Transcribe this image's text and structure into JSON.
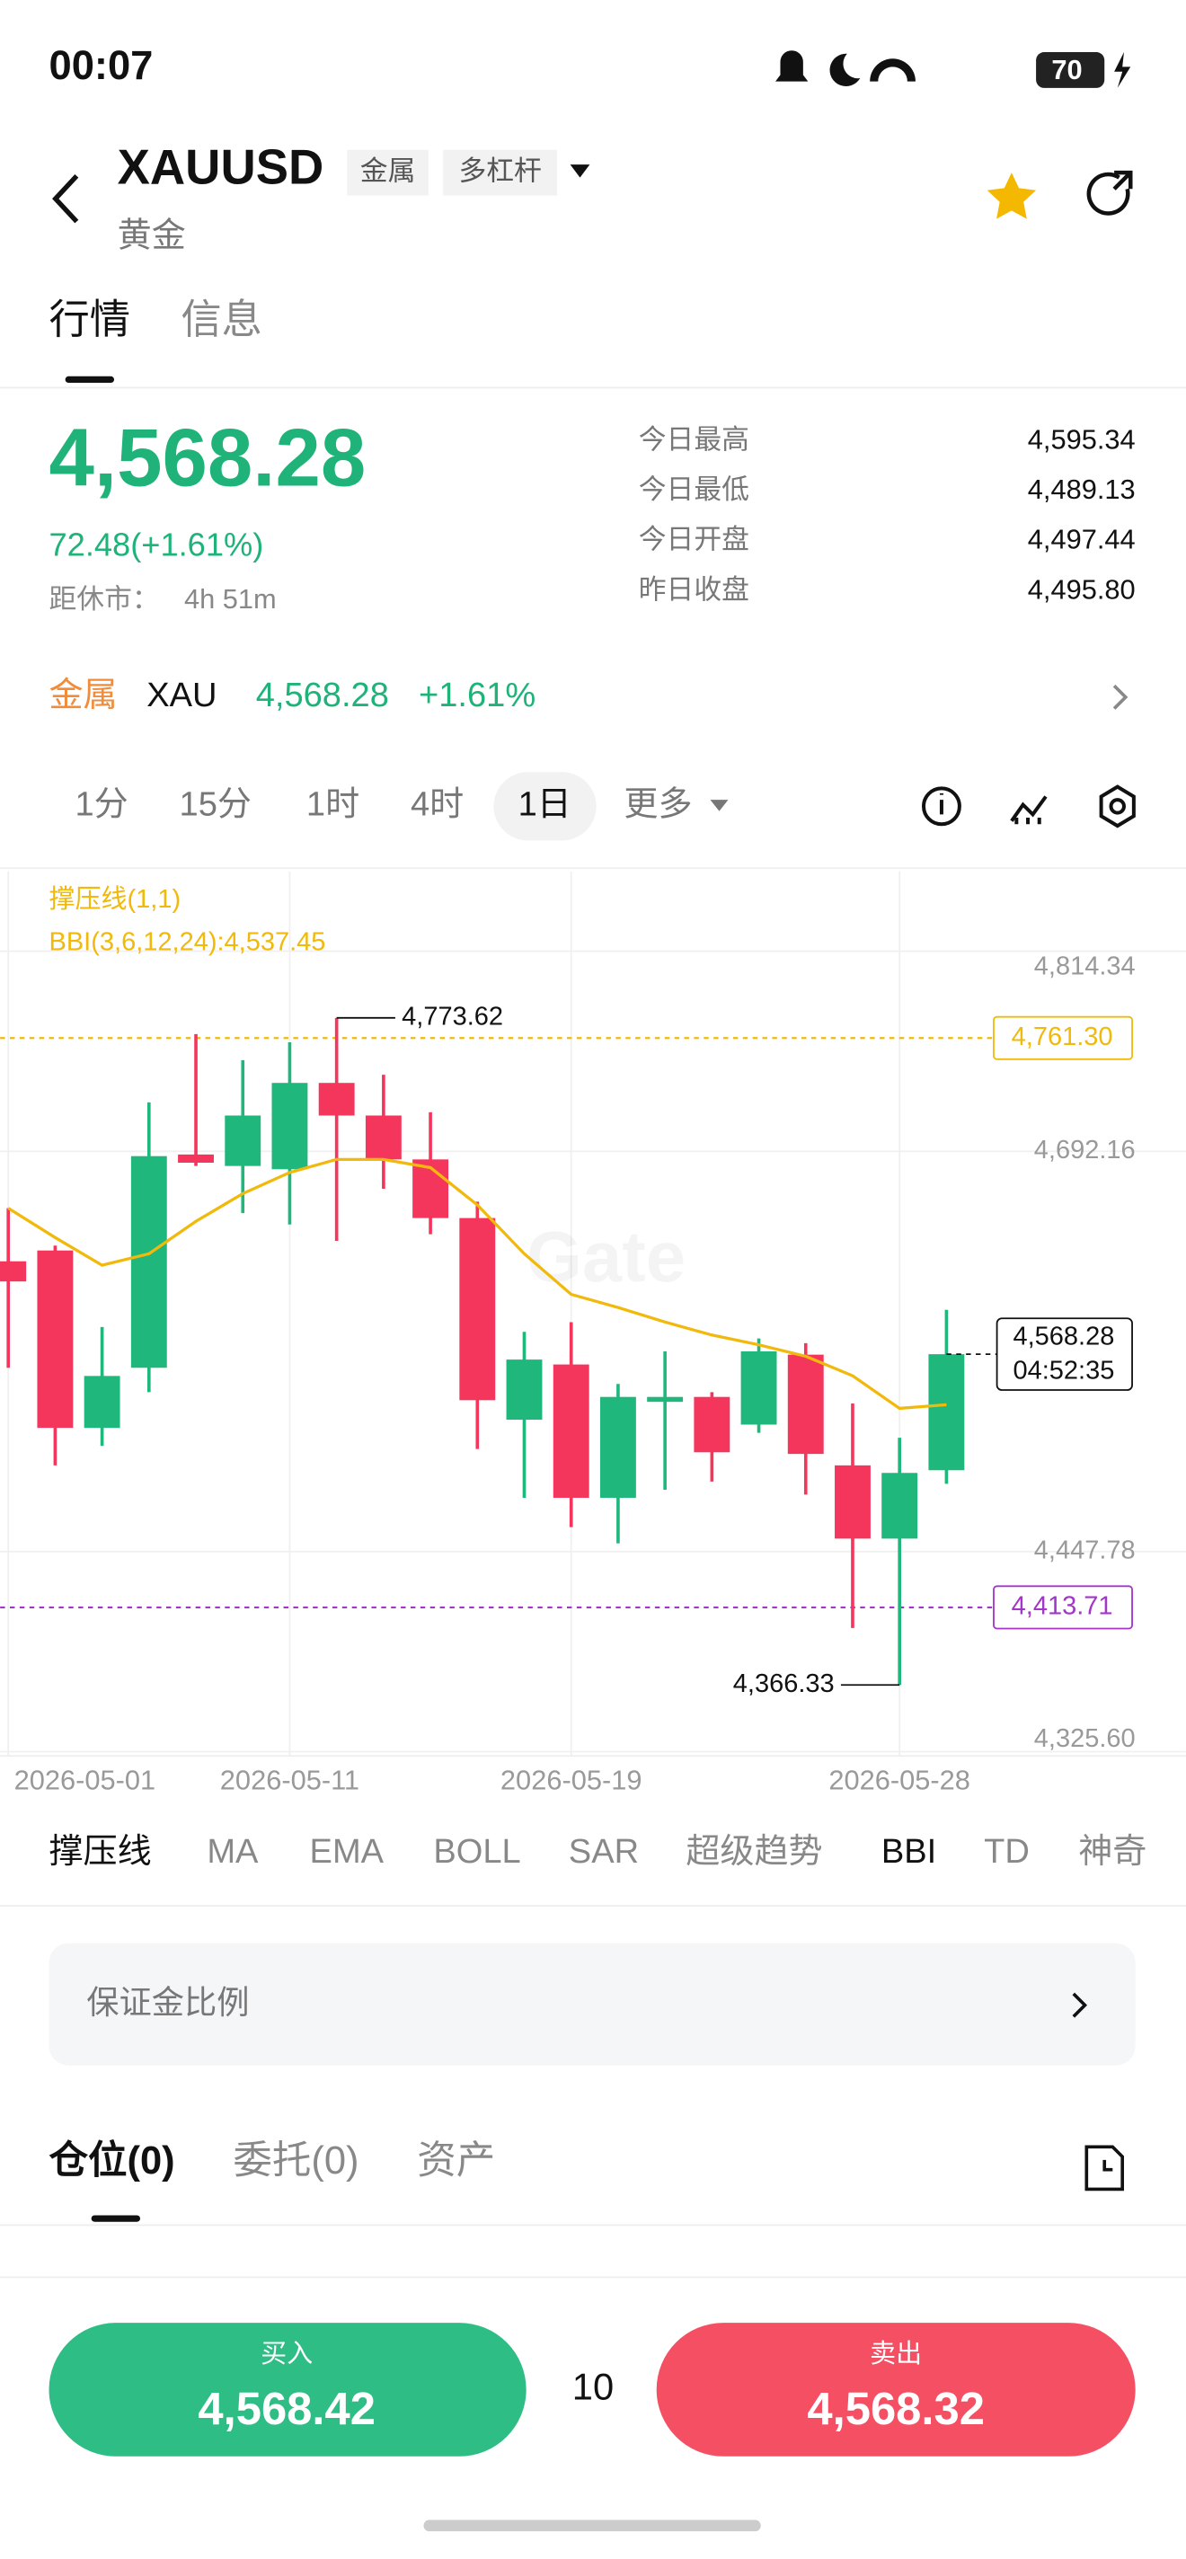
{
  "status_bar": {
    "time": "00:07",
    "battery": "70"
  },
  "header": {
    "symbol": "XAUUSD",
    "tags": [
      "金属",
      "多杠杆"
    ],
    "name": "黄金"
  },
  "tabs": {
    "items": [
      "行情",
      "信息"
    ],
    "active": 0
  },
  "quote": {
    "price": "4,568.28",
    "change": "72.48(+1.61%)",
    "session_label": "距休市：",
    "session_time": "4h 51m",
    "stats": [
      [
        "今日最高",
        "4,595.34"
      ],
      [
        "今日最低",
        "4,489.13"
      ],
      [
        "今日开盘",
        "4,497.44"
      ],
      [
        "昨日收盘",
        "4,495.80"
      ]
    ]
  },
  "sector": {
    "name": "金属",
    "asset": "XAU",
    "price": "4,568.28",
    "change": "+1.61%"
  },
  "intervals": {
    "items": [
      "1分",
      "15分",
      "1时",
      "4时",
      "1日",
      "更多"
    ],
    "active": 4
  },
  "chart_data": {
    "type": "candlestick",
    "watermark": "Gate",
    "legend": [
      "撑压线(1,1)",
      "BBI(3,6,12,24):4,537.45"
    ],
    "categories": [
      "2026-05-01",
      null,
      null,
      null,
      null,
      null,
      "2026-05-11",
      null,
      null,
      null,
      null,
      null,
      "2026-05-19",
      null,
      null,
      null,
      null,
      null,
      null,
      "2026-05-28",
      null
    ],
    "open": [
      4625,
      4631.6,
      4523.3,
      4560.0,
      4690.2,
      4683.2,
      4681.2,
      4733.9,
      4714.0,
      4687.2,
      4651.4,
      4528.3,
      4562.0,
      4480.6,
      4539.2,
      4542.2,
      4525.3,
      4568.0,
      4500.4,
      4455.7,
      4497.44
    ],
    "high": [
      4657.4,
      4634.6,
      4584.9,
      4722.0,
      4763.7,
      4747.8,
      4758.7,
      4773.62,
      4738.9,
      4716.0,
      4661.4,
      4581.9,
      4587.8,
      4550.1,
      4570.0,
      4545.1,
      4577.9,
      4575.0,
      4538.2,
      4517.3,
      4595.34
    ],
    "low": [
      4560.0,
      4500.4,
      4512.3,
      4545.1,
      4683.2,
      4654.4,
      4647.5,
      4637.5,
      4669.3,
      4641.5,
      4510.4,
      4480.6,
      4462.7,
      4452.8,
      4485.5,
      4490.5,
      4520.3,
      4482.6,
      4401.1,
      4366.33,
      4489.13
    ],
    "close": [
      4612.7,
      4523.3,
      4555.0,
      4689.2,
      4685.2,
      4714.0,
      4733.9,
      4714.0,
      4687.2,
      4651.4,
      4540.2,
      4565.0,
      4480.6,
      4542.2,
      4542.2,
      4508.4,
      4570.0,
      4507.4,
      4455.7,
      4495.8,
      4568.28
    ],
    "up_color": "#20b77c",
    "down_color": "#f5365c",
    "bbi": [
      4657.4,
      4639.5,
      4622.6,
      4629.6,
      4649.4,
      4666.3,
      4679.2,
      4687.2,
      4687.2,
      4682.2,
      4659.4,
      4629.6,
      4604.8,
      4596.8,
      4587.9,
      4580.0,
      4574.0,
      4567.0,
      4555.1,
      4535.2,
      4537.45
    ],
    "bbi_color": "#f0b90b",
    "levels": [
      {
        "value": 4761.3,
        "label": "4,761.30",
        "color": "#f0b90b"
      },
      {
        "value": 4413.71,
        "label": "4,413.71",
        "color": "#a335c9"
      }
    ],
    "last": {
      "value": 4568.28,
      "label": "4,568.28",
      "countdown": "04:52:35"
    },
    "high_label": "4,773.62",
    "low_label": "4,366.33",
    "ylim": [
      4323,
      4863
    ],
    "yticks": [
      {
        "value": 4325.6,
        "label": "4,325.60"
      },
      {
        "value": 4447.78,
        "label": "4,447.78"
      },
      {
        "value": 4692.16,
        "label": "4,692.16"
      },
      {
        "value": 4814.34,
        "label": "4,814.34"
      }
    ],
    "grid": true
  },
  "indicators": {
    "items": [
      "撑压线",
      "MA",
      "EMA",
      "BOLL",
      "SAR",
      "超级趋势",
      "BBI",
      "TD",
      "神奇"
    ],
    "active": [
      0,
      6
    ]
  },
  "margin": {
    "label": "保证金比例"
  },
  "positions": {
    "items": [
      "仓位(0)",
      "委托(0)",
      "资产"
    ],
    "active": 0
  },
  "order": {
    "buy_label": "买入",
    "buy_price": "4,568.42",
    "quantity": "10",
    "sell_label": "卖出",
    "sell_price": "4,568.32"
  }
}
